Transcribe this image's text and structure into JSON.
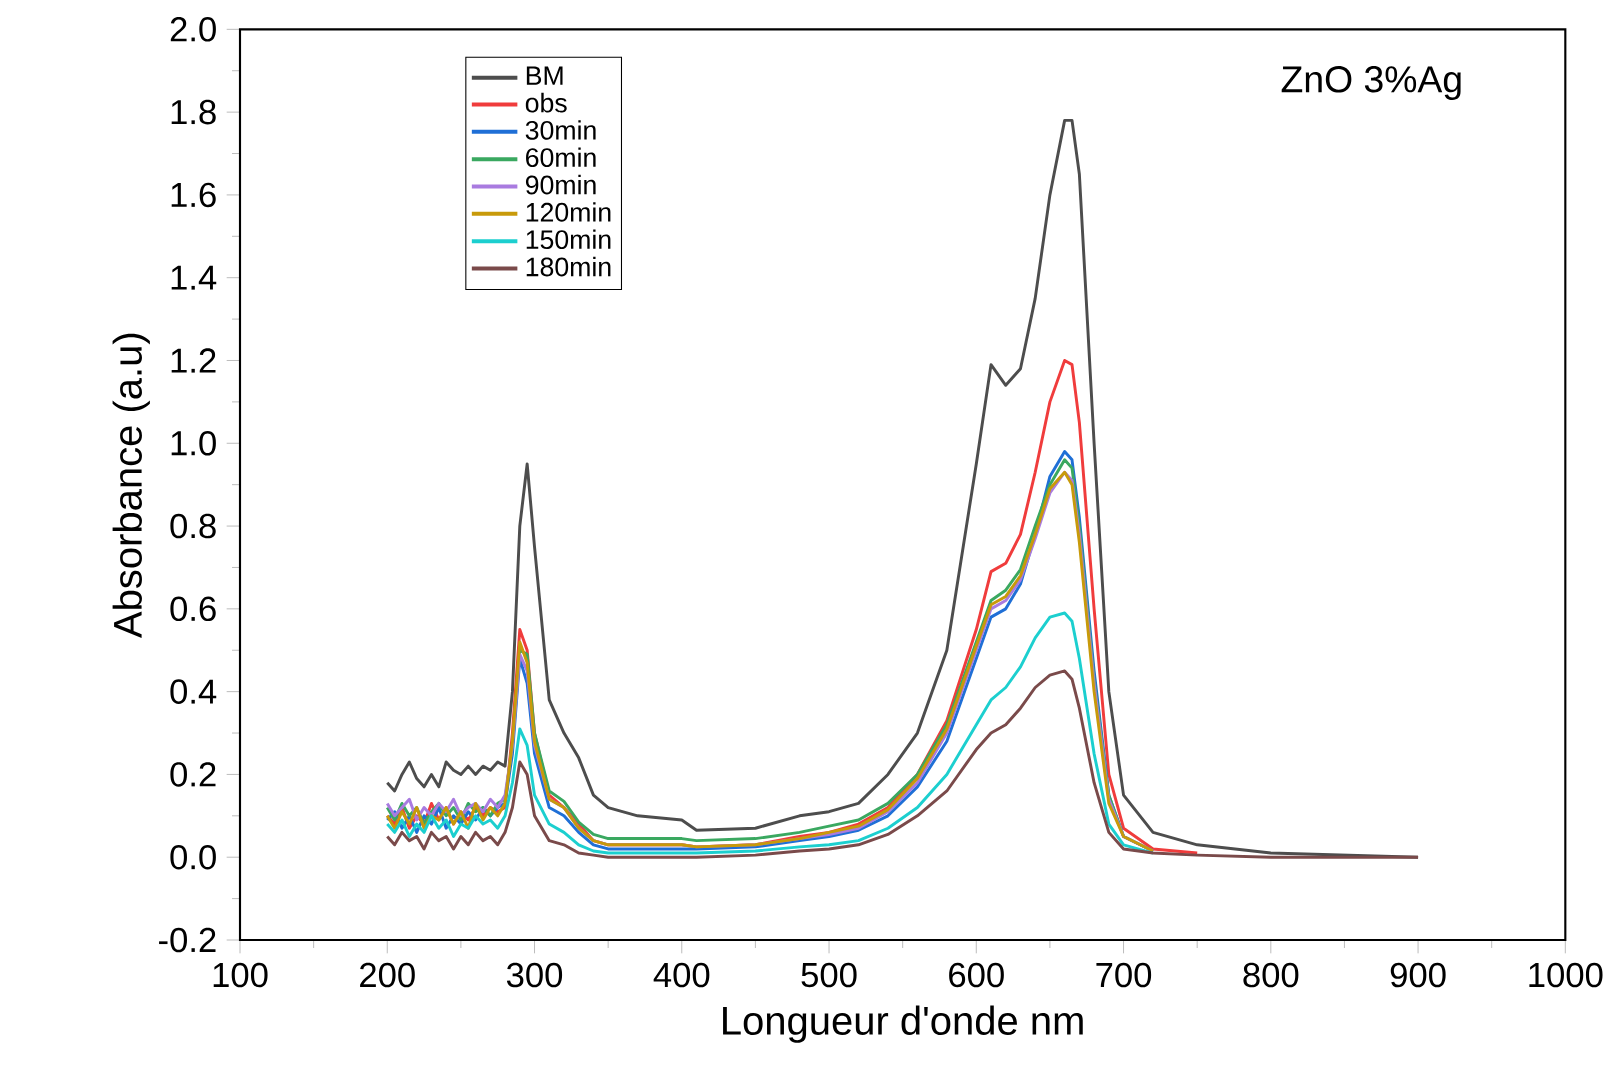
{
  "chart_data": {
    "type": "line",
    "xlabel": "Longueur d'onde nm",
    "ylabel": "Absorbance (a.u)",
    "annotations": [
      "ZnO 3%Ag"
    ],
    "legend": "top left",
    "line_style": "solid",
    "grid": false,
    "xlim": [
      100,
      1000
    ],
    "xticks": [
      100,
      200,
      300,
      400,
      500,
      600,
      700,
      800,
      900,
      1000
    ],
    "ylim": [
      -0.2,
      2.0
    ],
    "yticks": [
      -0.2,
      {
        "value": 0,
        "label": "0.0"
      },
      0.2,
      0.4,
      0.6,
      0.8,
      {
        "value": 1,
        "label": "1.0"
      },
      1.2,
      1.4,
      1.6,
      1.8,
      {
        "value": 2,
        "label": "2.0"
      }
    ],
    "x": [
      200,
      205,
      210,
      215,
      220,
      225,
      230,
      235,
      240,
      245,
      250,
      255,
      260,
      265,
      270,
      275,
      280,
      285,
      290,
      295,
      300,
      310,
      320,
      330,
      340,
      350,
      370,
      400,
      410,
      450,
      480,
      500,
      520,
      540,
      560,
      580,
      600,
      610,
      620,
      630,
      640,
      650,
      660,
      665,
      670,
      680,
      690,
      700,
      720,
      750,
      800,
      850,
      900
    ],
    "series": [
      {
        "name": "BM",
        "color": "#4d4d4d",
        "values": [
          0.18,
          0.16,
          0.2,
          0.23,
          0.19,
          0.17,
          0.2,
          0.17,
          0.23,
          0.21,
          0.2,
          0.22,
          0.2,
          0.22,
          0.21,
          0.23,
          0.22,
          0.4,
          0.8,
          0.95,
          0.75,
          0.38,
          0.3,
          0.24,
          0.15,
          0.12,
          0.1,
          0.09,
          0.065,
          0.07,
          0.1,
          0.11,
          0.13,
          0.2,
          0.3,
          0.5,
          0.95,
          1.19,
          1.14,
          1.18,
          1.35,
          1.6,
          1.78,
          1.78,
          1.65,
          1.0,
          0.4,
          0.15,
          0.06,
          0.03,
          0.01,
          0.005,
          0
        ]
      },
      {
        "name": "obs",
        "color": "#f03c3c",
        "values": [
          0.1,
          0.08,
          0.12,
          0.07,
          0.1,
          0.08,
          0.13,
          0.09,
          0.12,
          0.08,
          0.11,
          0.09,
          0.12,
          0.1,
          0.12,
          0.11,
          0.12,
          0.3,
          0.55,
          0.5,
          0.3,
          0.15,
          0.12,
          0.08,
          0.04,
          0.03,
          0.03,
          0.03,
          0.025,
          0.03,
          0.05,
          0.06,
          0.08,
          0.12,
          0.2,
          0.33,
          0.55,
          0.69,
          0.71,
          0.78,
          0.93,
          1.1,
          1.2,
          1.19,
          1.05,
          0.6,
          0.2,
          0.07,
          0.02,
          0.01,
          null,
          null,
          null
        ]
      },
      {
        "name": "30min",
        "color": "#1f6fd6",
        "values": [
          0.09,
          0.11,
          0.07,
          0.1,
          0.06,
          0.1,
          0.08,
          0.12,
          0.07,
          0.1,
          0.08,
          0.11,
          0.09,
          0.12,
          0.1,
          0.12,
          0.13,
          0.25,
          0.48,
          0.42,
          0.25,
          0.12,
          0.1,
          0.06,
          0.03,
          0.02,
          0.02,
          0.02,
          0.02,
          0.025,
          0.04,
          0.05,
          0.065,
          0.1,
          0.17,
          0.28,
          0.48,
          0.58,
          0.6,
          0.66,
          0.78,
          0.92,
          0.98,
          0.96,
          0.82,
          0.45,
          0.15,
          0.05,
          0.015,
          null,
          null,
          null,
          null
        ]
      },
      {
        "name": "60min",
        "color": "#3aa860",
        "values": [
          0.12,
          0.09,
          0.13,
          0.1,
          0.12,
          0.08,
          0.11,
          0.13,
          0.1,
          0.12,
          0.09,
          0.13,
          0.11,
          0.12,
          0.1,
          0.13,
          0.14,
          0.27,
          0.5,
          0.49,
          0.3,
          0.16,
          0.135,
          0.085,
          0.055,
          0.045,
          0.045,
          0.045,
          0.04,
          0.045,
          0.06,
          0.075,
          0.09,
          0.13,
          0.2,
          0.32,
          0.52,
          0.62,
          0.645,
          0.695,
          0.8,
          0.9,
          0.96,
          0.94,
          0.8,
          0.43,
          0.15,
          0.05,
          0.015,
          null,
          null,
          null,
          null
        ]
      },
      {
        "name": "90min",
        "color": "#a97be0",
        "values": [
          0.13,
          0.1,
          0.12,
          0.14,
          0.09,
          0.12,
          0.1,
          0.13,
          0.11,
          0.14,
          0.1,
          0.12,
          0.13,
          0.11,
          0.14,
          0.12,
          0.15,
          0.27,
          0.49,
          0.45,
          0.27,
          0.14,
          0.12,
          0.07,
          0.04,
          0.03,
          0.03,
          0.03,
          0.025,
          0.03,
          0.045,
          0.055,
          0.07,
          0.11,
          0.18,
          0.3,
          0.5,
          0.6,
          0.62,
          0.67,
          0.77,
          0.88,
          0.93,
          0.91,
          0.78,
          0.42,
          0.14,
          0.05,
          0.015,
          null,
          null,
          null,
          null
        ]
      },
      {
        "name": "120min",
        "color": "#c89a0a",
        "values": [
          0.1,
          0.07,
          0.11,
          0.08,
          0.12,
          0.07,
          0.1,
          0.09,
          0.12,
          0.08,
          0.11,
          0.07,
          0.13,
          0.09,
          0.12,
          0.1,
          0.13,
          0.28,
          0.52,
          0.47,
          0.28,
          0.14,
          0.12,
          0.07,
          0.04,
          0.03,
          0.03,
          0.03,
          0.025,
          0.03,
          0.045,
          0.06,
          0.075,
          0.115,
          0.19,
          0.31,
          0.51,
          0.61,
          0.63,
          0.68,
          0.78,
          0.89,
          0.93,
          0.9,
          0.76,
          0.4,
          0.13,
          0.05,
          0.015,
          null,
          null,
          null,
          null
        ]
      },
      {
        "name": "150min",
        "color": "#1ccfcf",
        "values": [
          0.08,
          0.06,
          0.09,
          0.05,
          0.08,
          0.06,
          0.1,
          0.07,
          0.09,
          0.05,
          0.08,
          0.07,
          0.1,
          0.08,
          0.09,
          0.07,
          0.1,
          0.18,
          0.31,
          0.27,
          0.15,
          0.08,
          0.06,
          0.03,
          0.015,
          0.01,
          0.01,
          0.01,
          0.01,
          0.015,
          0.025,
          0.03,
          0.04,
          0.07,
          0.12,
          0.2,
          0.32,
          0.38,
          0.41,
          0.46,
          0.53,
          0.58,
          0.59,
          0.57,
          0.48,
          0.25,
          0.08,
          0.03,
          0.01,
          null,
          null,
          null,
          null
        ]
      },
      {
        "name": "180min",
        "color": "#7a4a4a",
        "values": [
          0.05,
          0.03,
          0.06,
          0.04,
          0.05,
          0.02,
          0.06,
          0.04,
          0.05,
          0.02,
          0.05,
          0.03,
          0.06,
          0.04,
          0.05,
          0.03,
          0.06,
          0.12,
          0.23,
          0.2,
          0.1,
          0.04,
          0.03,
          0.01,
          0.005,
          0,
          0,
          0,
          0,
          0.005,
          0.015,
          0.02,
          0.03,
          0.055,
          0.1,
          0.16,
          0.26,
          0.3,
          0.32,
          0.36,
          0.41,
          0.44,
          0.45,
          0.43,
          0.36,
          0.18,
          0.06,
          0.02,
          0.01,
          0.005,
          0,
          0,
          0
        ]
      }
    ]
  }
}
